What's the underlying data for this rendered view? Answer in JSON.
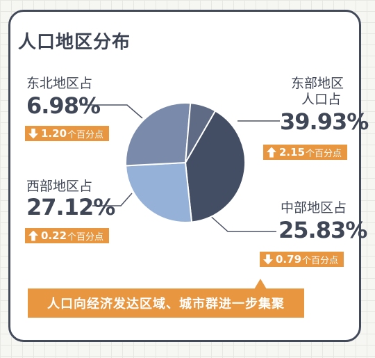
{
  "title": "人口地区分布",
  "chart_data": {
    "type": "pie",
    "title": "人口地区分布",
    "slices": [
      {
        "label": "东部地区人口占",
        "value": 39.93,
        "color": "#434e65"
      },
      {
        "label": "中部地区占",
        "value": 25.83,
        "color": "#95b1d8"
      },
      {
        "label": "西部地区占",
        "value": 27.12,
        "color": "#7a8aaa"
      },
      {
        "label": "东北地区占",
        "value": 6.98,
        "color": "#5f6b85"
      }
    ]
  },
  "regions": {
    "east": {
      "label_line1": "东部地区",
      "label_line2": "人口占",
      "value": "39.93%",
      "change": "2.15",
      "unit": "个百分点",
      "direction": "up"
    },
    "central": {
      "label": "中部地区占",
      "value": "25.83%",
      "change": "0.79",
      "unit": "个百分点",
      "direction": "down"
    },
    "west": {
      "label": "西部地区占",
      "value": "27.12%",
      "change": "0.22",
      "unit": "个百分点",
      "direction": "up"
    },
    "northeast": {
      "label": "东北地区占",
      "value": "6.98%",
      "change": "1.20",
      "unit": "个百分点",
      "direction": "down"
    }
  },
  "callout": "人口向经济发达区域、城市群进一步集聚",
  "colors": {
    "accent": "#e8963f",
    "frame": "#424a5a",
    "text": "#3f4656"
  }
}
